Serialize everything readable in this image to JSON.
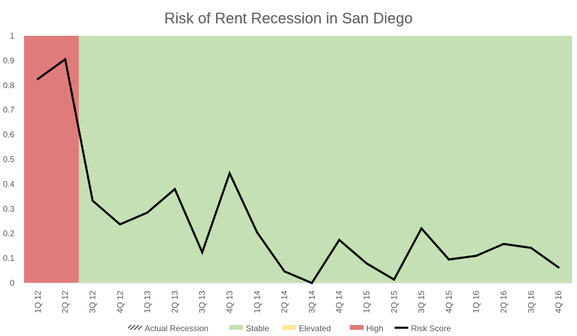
{
  "chart_data": {
    "type": "line",
    "title": "Risk of Rent Recession in San Diego",
    "xlabel": "",
    "ylabel": "",
    "ylim": [
      0,
      1
    ],
    "yticks": [
      "0",
      "0.1",
      "0.2",
      "0.3",
      "0.4",
      "0.5",
      "0.6",
      "0.7",
      "0.8",
      "0.9",
      "1"
    ],
    "categories": [
      "1Q 12",
      "2Q 12",
      "3Q 12",
      "4Q 12",
      "1Q 13",
      "2Q 13",
      "3Q 13",
      "4Q 13",
      "1Q 14",
      "2Q 14",
      "3Q 14",
      "4Q 14",
      "1Q 15",
      "2Q 15",
      "3Q 15",
      "4Q 15",
      "1Q 16",
      "2Q 16",
      "3Q 16",
      "4Q 16"
    ],
    "series": [
      {
        "name": "Risk Score",
        "color": "#000000",
        "values": [
          0.825,
          0.905,
          0.333,
          0.237,
          0.285,
          0.38,
          0.124,
          0.444,
          0.205,
          0.047,
          0.0,
          0.174,
          0.079,
          0.014,
          0.221,
          0.095,
          0.11,
          0.158,
          0.142,
          0.063
        ]
      }
    ],
    "background_bands": [
      {
        "label": "High",
        "from_category": "1Q 12",
        "to_category": "2Q 12",
        "color": "#e07b7b"
      },
      {
        "label": "Stable",
        "from_category": "3Q 12",
        "to_category": "4Q 16",
        "color": "#c5e0b4"
      }
    ],
    "legend": {
      "position": "bottom",
      "items": [
        {
          "label": "Actual Recession",
          "style": "hatch",
          "color": "#000000"
        },
        {
          "label": "Stable",
          "style": "fill",
          "color": "#c5e0b4"
        },
        {
          "label": "Elevated",
          "style": "fill",
          "color": "#ffe699"
        },
        {
          "label": "High",
          "style": "fill",
          "color": "#e07b7b"
        },
        {
          "label": "Risk Score",
          "style": "line",
          "color": "#000000"
        }
      ]
    },
    "grid": false
  }
}
